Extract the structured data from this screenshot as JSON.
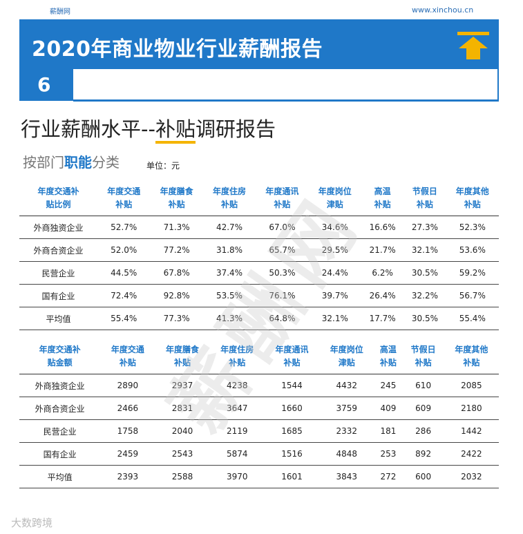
{
  "header": {
    "site_name": "薪酬网",
    "url": "www.xinchou.cn",
    "title": "2020年商业物业行业薪酬报告",
    "page_number": "6"
  },
  "heading": [
    "行业薪酬水平--",
    "补贴",
    "调研报告"
  ],
  "subheading": {
    "parts": [
      "按部门",
      "职能",
      "分类"
    ],
    "unit": "单位：元"
  },
  "tables": [
    {
      "columns": [
        [
          "年度交通补",
          "贴比例"
        ],
        [
          "年度交通",
          "补贴"
        ],
        [
          "年度膳食",
          "补贴"
        ],
        [
          "年度住房",
          "补贴"
        ],
        [
          "年度通讯",
          "补贴"
        ],
        [
          "年度岗位",
          "津贴"
        ],
        [
          "高温",
          "补贴"
        ],
        [
          "节假日",
          "补贴"
        ],
        [
          "年度其他",
          "补贴"
        ]
      ],
      "rows": [
        [
          "外商独资企业",
          "52.7%",
          "71.3%",
          "42.7%",
          "67.0%",
          "34.6%",
          "16.6%",
          "27.3%",
          "52.3%"
        ],
        [
          "外商合资企业",
          "52.0%",
          "77.2%",
          "31.8%",
          "65.7%",
          "29.5%",
          "21.7%",
          "32.1%",
          "53.6%"
        ],
        [
          "民营企业",
          "44.5%",
          "67.8%",
          "37.4%",
          "50.3%",
          "24.4%",
          "6.2%",
          "30.5%",
          "59.2%"
        ],
        [
          "国有企业",
          "72.4%",
          "92.8%",
          "53.5%",
          "76.1%",
          "39.7%",
          "26.4%",
          "32.2%",
          "56.7%"
        ],
        [
          "平均值",
          "55.4%",
          "77.3%",
          "41.3%",
          "64.8%",
          "32.1%",
          "17.7%",
          "30.5%",
          "55.4%"
        ]
      ]
    },
    {
      "columns": [
        [
          "年度交通补",
          "贴金额"
        ],
        [
          "年度交通",
          "补贴"
        ],
        [
          "年度膳食",
          "补贴"
        ],
        [
          "年度住房",
          "补贴"
        ],
        [
          "年度通讯",
          "补贴"
        ],
        [
          "年度岗位",
          "津贴"
        ],
        [
          "高温",
          "补贴"
        ],
        [
          "节假日",
          "补贴"
        ],
        [
          "年度其他",
          "补贴"
        ]
      ],
      "rows": [
        [
          "外商独资企业",
          "2890",
          "2937",
          "4238",
          "1544",
          "4432",
          "245",
          "610",
          "2085"
        ],
        [
          "外商合资企业",
          "2466",
          "2831",
          "3647",
          "1660",
          "3759",
          "409",
          "609",
          "2180"
        ],
        [
          "民营企业",
          "1758",
          "2040",
          "2119",
          "1685",
          "2332",
          "181",
          "286",
          "1442"
        ],
        [
          "国有企业",
          "2459",
          "2543",
          "5874",
          "1516",
          "4848",
          "253",
          "892",
          "2422"
        ],
        [
          "平均值",
          "2393",
          "2588",
          "3970",
          "1601",
          "3843",
          "272",
          "600",
          "2032"
        ]
      ]
    }
  ],
  "watermark": "薪酬网",
  "footer_logo": "大数跨境"
}
